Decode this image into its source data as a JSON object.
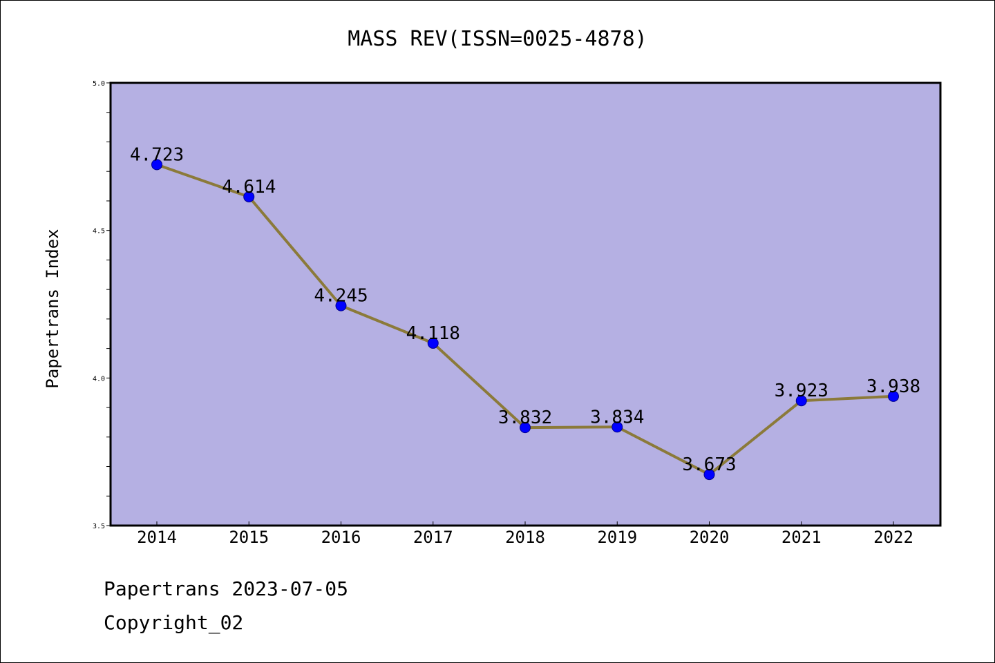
{
  "chart_data": {
    "type": "line",
    "title": "MASS REV(ISSN=0025-4878)",
    "ylabel": "Papertrans Index",
    "xlabel": "",
    "categories": [
      "2014",
      "2015",
      "2016",
      "2017",
      "2018",
      "2019",
      "2020",
      "2021",
      "2022"
    ],
    "values": [
      4.723,
      4.614,
      4.245,
      4.118,
      3.832,
      3.834,
      3.673,
      3.923,
      3.938
    ],
    "value_labels": [
      "4.723",
      "4.614",
      "4.245",
      "4.118",
      "3.832",
      "3.834",
      "3.673",
      "3.923",
      "3.938"
    ],
    "ylim": [
      3.5,
      5.0
    ],
    "yticks": [
      "3.5",
      "4.0",
      "4.5",
      "5.0"
    ],
    "grid": false,
    "colors": {
      "plot_background": "#b5b0e3",
      "line": "#8b7a3a",
      "marker": "#0000ff"
    }
  },
  "footer": {
    "date_text": "Papertrans 2023-07-05",
    "copyright_text": "Copyright_02"
  }
}
